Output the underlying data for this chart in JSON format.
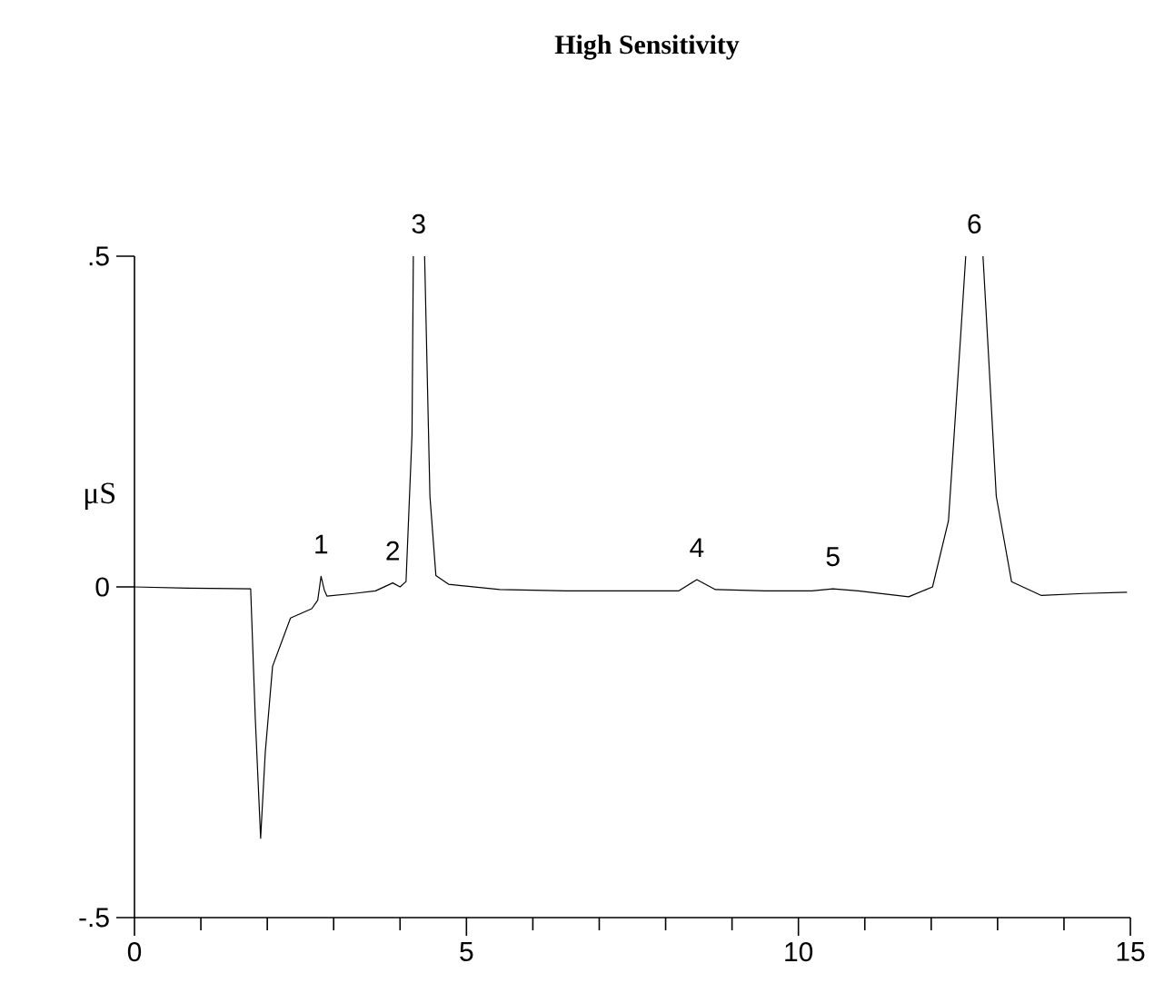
{
  "chart_data": {
    "type": "line",
    "title": "High Sensitivity",
    "ylabel": "μS",
    "x": [
      0,
      0.8,
      1.75,
      1.82,
      1.9,
      1.97,
      2.08,
      2.35,
      2.67,
      2.76,
      2.81,
      2.86,
      2.9,
      3.3,
      3.63,
      3.89,
      4.0,
      4.09,
      4.18,
      4.2,
      4.28,
      4.37,
      4.45,
      4.54,
      4.73,
      5.5,
      6.5,
      7.5,
      8.2,
      8.47,
      8.75,
      9.5,
      10.2,
      10.52,
      10.9,
      11.66,
      12.02,
      12.26,
      12.44,
      12.52,
      12.65,
      12.78,
      12.87,
      12.98,
      13.21,
      13.66,
      14.3,
      14.95
    ],
    "series": [
      {
        "color": "#000000",
        "values": [
          0,
          -0.002,
          -0.003,
          -0.2,
          -0.38,
          -0.25,
          -0.12,
          -0.047,
          -0.033,
          -0.02,
          0.016,
          -0.005,
          -0.014,
          -0.01,
          -0.006,
          0.006,
          0,
          0.008,
          0.23,
          0.5,
          null,
          0.5,
          0.137,
          0.017,
          0.004,
          -0.004,
          -0.006,
          -0.006,
          -0.006,
          0.011,
          -0.004,
          -0.006,
          -0.006,
          -0.003,
          -0.006,
          -0.015,
          0,
          0.1,
          0.374,
          0.5,
          null,
          0.5,
          0.338,
          0.137,
          0.008,
          -0.013,
          -0.01,
          -0.008
        ]
      }
    ],
    "xlim": [
      0,
      15
    ],
    "ylim": [
      -0.5,
      0.5
    ],
    "xticks": [
      0,
      {
        "value": 1,
        "label": null
      },
      {
        "value": 2,
        "label": null
      },
      {
        "value": 3,
        "label": null
      },
      {
        "value": 4,
        "label": null
      },
      5,
      {
        "value": 6,
        "label": null
      },
      {
        "value": 7,
        "label": null
      },
      {
        "value": 8,
        "label": null
      },
      {
        "value": 9,
        "label": null
      },
      10,
      {
        "value": 11,
        "label": null
      },
      {
        "value": 12,
        "label": null
      },
      {
        "value": 13,
        "label": null
      },
      {
        "value": 14,
        "label": null
      },
      15
    ],
    "yticks": [
      {
        "value": -0.5,
        "label": "-.5"
      },
      0,
      {
        "value": 0.5,
        "label": ".5"
      }
    ],
    "annotations": [
      {
        "text": "1",
        "x": 2.81,
        "y": 0.016
      },
      {
        "text": "2",
        "x": 3.89,
        "y": 0.006
      },
      {
        "text": "3",
        "x": 4.28,
        "y": 0.5
      },
      {
        "text": "4",
        "x": 8.47,
        "y": 0.011
      },
      {
        "text": "5",
        "x": 10.52,
        "y": -0.003
      },
      {
        "text": "6",
        "x": 12.65,
        "y": 0.5
      }
    ],
    "grid": false,
    "legend": false,
    "marker": "none",
    "line_style": "solid"
  }
}
